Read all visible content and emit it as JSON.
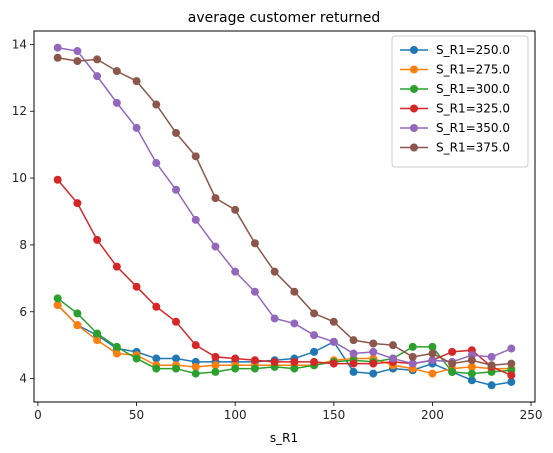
{
  "chart_data": {
    "type": "line",
    "title": "average customer returned",
    "xlabel": "s_R1",
    "ylabel": "",
    "xlim": [
      -2,
      252
    ],
    "ylim": [
      3.3,
      14.4
    ],
    "xticks": [
      0,
      50,
      100,
      150,
      200,
      250
    ],
    "yticks": [
      4,
      6,
      8,
      10,
      12,
      14
    ],
    "grid": false,
    "legend_position": "top-right",
    "x": [
      10,
      20,
      30,
      40,
      50,
      60,
      70,
      80,
      90,
      100,
      110,
      120,
      130,
      140,
      150,
      160,
      170,
      180,
      190,
      200,
      210,
      220,
      230,
      240
    ],
    "series": [
      {
        "name": "S_R1=250.0",
        "color": "#1f77b4",
        "values": [
          6.2,
          5.6,
          5.3,
          4.9,
          4.8,
          4.6,
          4.6,
          4.5,
          4.5,
          4.5,
          4.5,
          4.55,
          4.6,
          4.8,
          5.1,
          4.2,
          4.15,
          4.3,
          4.25,
          4.45,
          4.2,
          3.95,
          3.8,
          3.9
        ]
      },
      {
        "name": "S_R1=275.0",
        "color": "#ff7f0e",
        "values": [
          6.2,
          5.6,
          5.15,
          4.75,
          4.7,
          4.4,
          4.4,
          4.35,
          4.4,
          4.4,
          4.4,
          4.4,
          4.4,
          4.4,
          4.55,
          4.6,
          4.6,
          4.4,
          4.3,
          4.15,
          4.3,
          4.35,
          4.3,
          4.3
        ]
      },
      {
        "name": "S_R1=300.0",
        "color": "#2ca02c",
        "values": [
          6.4,
          5.95,
          5.35,
          4.95,
          4.6,
          4.3,
          4.3,
          4.15,
          4.2,
          4.3,
          4.3,
          4.35,
          4.3,
          4.4,
          4.5,
          4.55,
          4.5,
          4.6,
          4.95,
          4.95,
          4.2,
          4.15,
          4.2,
          4.25
        ]
      },
      {
        "name": "S_R1=325.0",
        "color": "#d62728",
        "values": [
          9.95,
          9.25,
          8.15,
          7.35,
          6.75,
          6.15,
          5.7,
          5.0,
          4.65,
          4.6,
          4.55,
          4.5,
          4.5,
          4.5,
          4.45,
          4.45,
          4.45,
          4.5,
          4.45,
          4.55,
          4.8,
          4.85,
          4.35,
          4.1
        ]
      },
      {
        "name": "S_R1=350.0",
        "color": "#9467bd",
        "values": [
          13.9,
          13.8,
          13.05,
          12.25,
          11.5,
          10.45,
          9.65,
          8.75,
          7.95,
          7.2,
          6.6,
          5.8,
          5.65,
          5.3,
          5.1,
          4.75,
          4.8,
          4.6,
          4.45,
          4.55,
          4.5,
          4.7,
          4.65,
          4.9
        ]
      },
      {
        "name": "S_R1=375.0",
        "color": "#8c564b",
        "values": [
          13.6,
          13.5,
          13.55,
          13.2,
          12.9,
          12.2,
          11.35,
          10.65,
          9.4,
          9.05,
          8.05,
          7.2,
          6.6,
          5.95,
          5.7,
          5.15,
          5.05,
          5.0,
          4.65,
          4.75,
          4.45,
          4.55,
          4.4,
          4.45
        ]
      }
    ]
  }
}
